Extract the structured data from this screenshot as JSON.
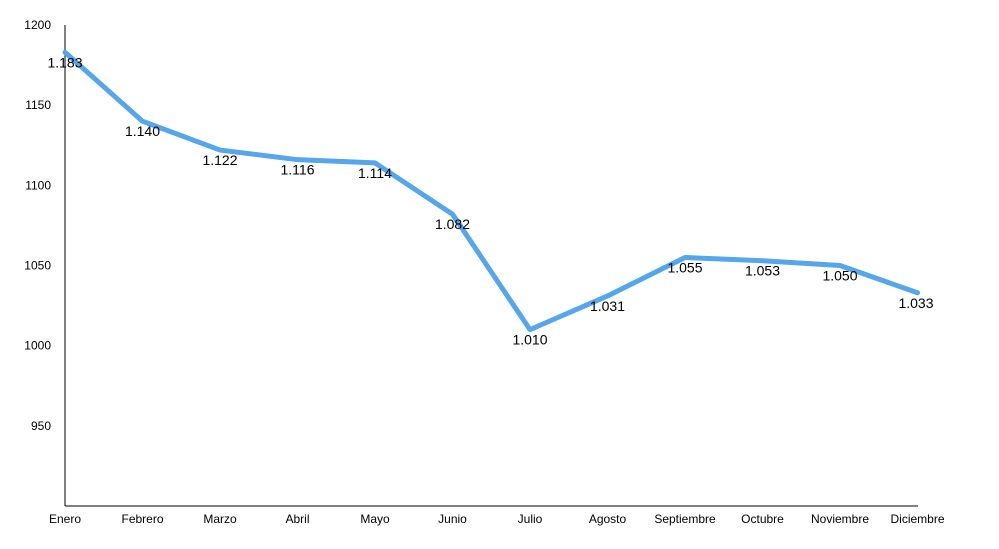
{
  "chart_data": {
    "type": "line",
    "title": "",
    "xlabel": "",
    "ylabel": "",
    "categories": [
      "Enero",
      "Febrero",
      "Marzo",
      "Abril",
      "Mayo",
      "Junio",
      "Julio",
      "Agosto",
      "Septiembre",
      "Octubre",
      "Noviembre",
      "Diciembre"
    ],
    "series": [
      {
        "values": [
          1183,
          1140,
          1122,
          1116,
          1114,
          1082,
          1010,
          1031,
          1055,
          1053,
          1050,
          1033
        ],
        "labels": [
          "1.183",
          "1.140",
          "1.122",
          "1.116",
          "1.114",
          "1.082",
          "1.010",
          "1.031",
          "1.055",
          "1.053",
          "1.050",
          "1.033"
        ],
        "color": "#55A6EA"
      }
    ],
    "yticks": [
      "1200",
      "1150",
      "1100",
      "1050",
      "1000",
      "950"
    ],
    "ylim": [
      900,
      1200
    ],
    "grid": false,
    "legend": "none"
  }
}
